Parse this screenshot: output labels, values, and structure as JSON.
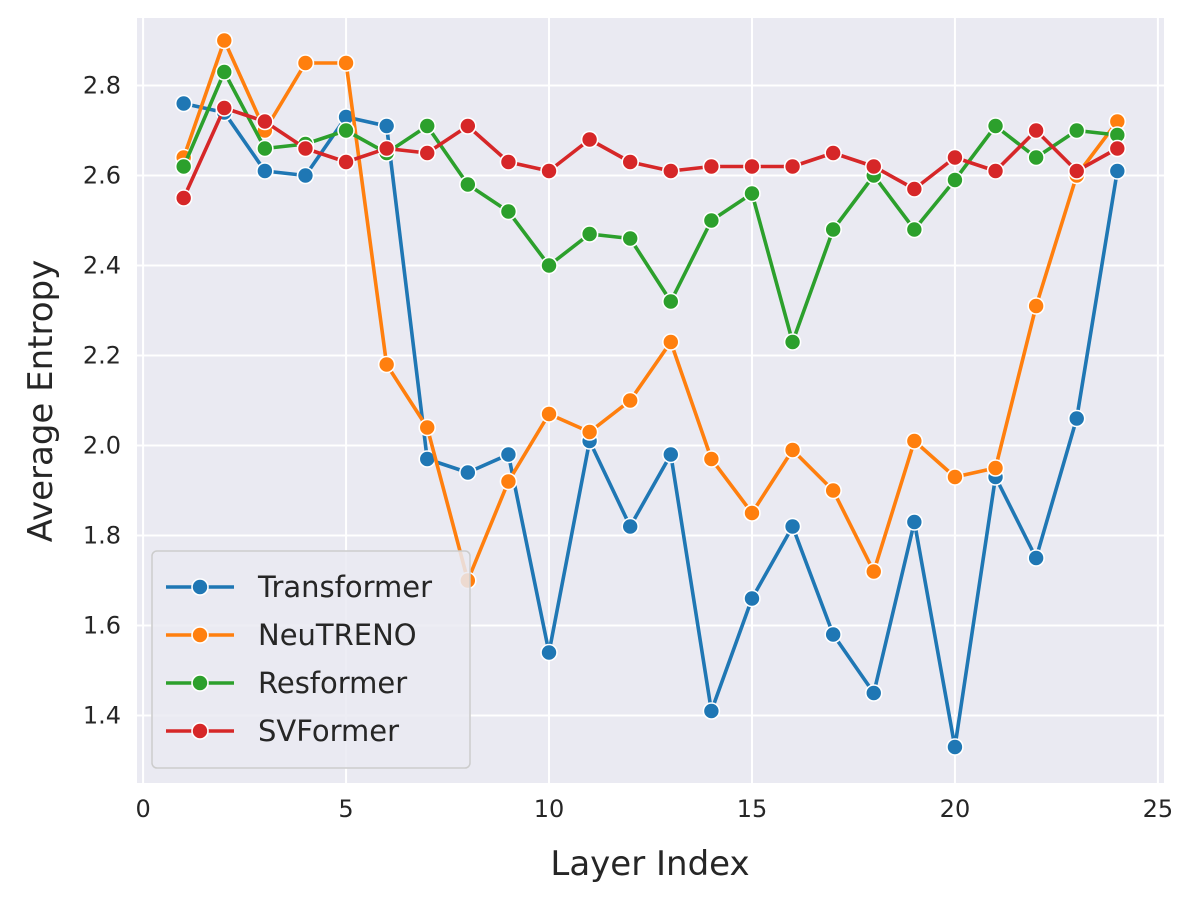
{
  "chart_data": {
    "type": "line",
    "title": "",
    "xlabel": "Layer Index",
    "ylabel": "Average Entropy",
    "xlim": [
      -0.15,
      25.15
    ],
    "ylim": [
      1.25,
      2.95
    ],
    "xticks": [
      0,
      5,
      10,
      15,
      20,
      25
    ],
    "yticks": [
      1.4,
      1.6,
      1.8,
      2.0,
      2.2,
      2.4,
      2.6,
      2.8
    ],
    "xtick_labels": [
      "0",
      "5",
      "10",
      "15",
      "20",
      "25"
    ],
    "ytick_labels": [
      "1.4",
      "1.6",
      "1.8",
      "2.0",
      "2.2",
      "2.4",
      "2.6",
      "2.8"
    ],
    "grid": true,
    "legend_position": "lower-left",
    "x": [
      1,
      2,
      3,
      4,
      5,
      6,
      7,
      8,
      9,
      10,
      11,
      12,
      13,
      14,
      15,
      16,
      17,
      18,
      19,
      20,
      21,
      22,
      23,
      24
    ],
    "series": [
      {
        "name": "Transformer",
        "color": "#1f77b4",
        "values": [
          2.76,
          2.74,
          2.61,
          2.6,
          2.73,
          2.71,
          1.97,
          1.94,
          1.98,
          1.54,
          2.01,
          1.82,
          1.98,
          1.41,
          1.66,
          1.82,
          1.58,
          1.45,
          1.83,
          1.33,
          1.93,
          1.75,
          2.06,
          2.61
        ]
      },
      {
        "name": "NeuTRENO",
        "color": "#ff7f0e",
        "values": [
          2.64,
          2.9,
          2.7,
          2.85,
          2.85,
          2.18,
          2.04,
          1.7,
          1.92,
          2.07,
          2.03,
          2.1,
          2.23,
          1.97,
          1.85,
          1.99,
          1.9,
          1.72,
          2.01,
          1.93,
          1.95,
          2.31,
          2.6,
          2.72
        ]
      },
      {
        "name": "Resformer",
        "color": "#2ca02c",
        "values": [
          2.62,
          2.83,
          2.66,
          2.67,
          2.7,
          2.65,
          2.71,
          2.58,
          2.52,
          2.4,
          2.47,
          2.46,
          2.32,
          2.5,
          2.56,
          2.23,
          2.48,
          2.6,
          2.48,
          2.59,
          2.71,
          2.64,
          2.7,
          2.69
        ]
      },
      {
        "name": "SVFormer",
        "color": "#d62728",
        "values": [
          2.55,
          2.75,
          2.72,
          2.66,
          2.63,
          2.66,
          2.65,
          2.71,
          2.63,
          2.61,
          2.68,
          2.63,
          2.61,
          2.62,
          2.62,
          2.62,
          2.65,
          2.62,
          2.57,
          2.64,
          2.61,
          2.7,
          2.61,
          2.66
        ]
      }
    ]
  }
}
